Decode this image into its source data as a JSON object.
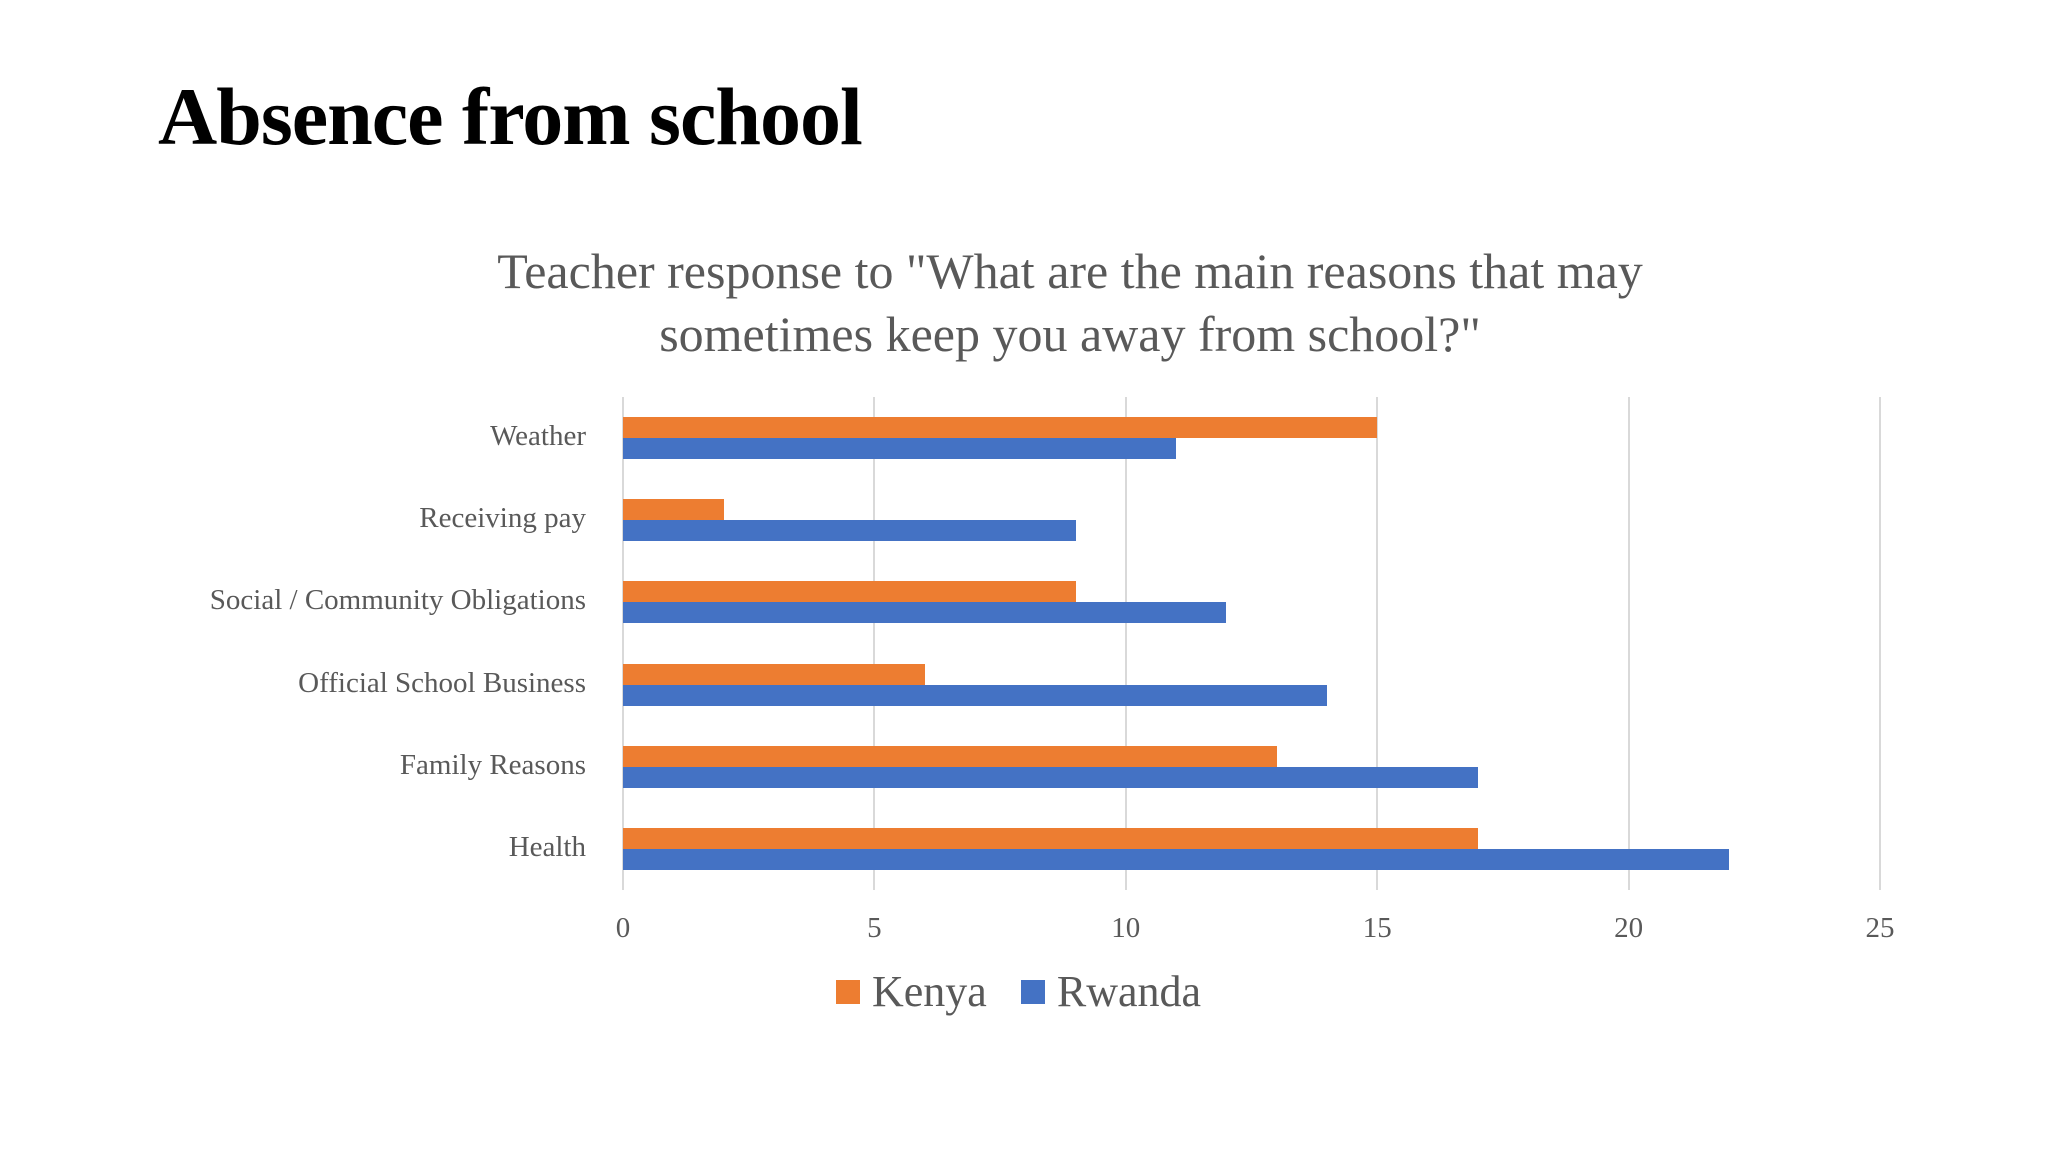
{
  "slide": {
    "title": "Absence from school"
  },
  "chart_data": {
    "type": "bar",
    "orientation": "horizontal",
    "title": "Teacher response to \"What are the main reasons that may sometimes keep you away from school?\"",
    "title_lines": [
      "Teacher response to \"What are the main reasons that may",
      "sometimes keep you away from school?\""
    ],
    "categories": [
      "Weather",
      "Receiving pay",
      "Social / Community Obligations",
      "Official School Business",
      "Family Reasons",
      "Health"
    ],
    "series": [
      {
        "name": "Kenya",
        "color": "#ED7D31",
        "values": [
          15,
          2,
          9,
          6,
          13,
          17
        ]
      },
      {
        "name": "Rwanda",
        "color": "#4472C4",
        "values": [
          11,
          9,
          12,
          14,
          17,
          22
        ]
      }
    ],
    "xlabel": "",
    "ylabel": "",
    "xlim": [
      0,
      25
    ],
    "xticks": [
      "0",
      "5",
      "10",
      "15",
      "20",
      "25"
    ],
    "grid": true,
    "legend_position": "bottom"
  }
}
